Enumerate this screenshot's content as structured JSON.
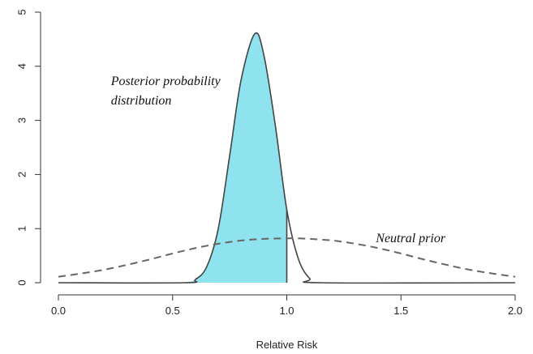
{
  "chart_data": {
    "type": "line",
    "title": "",
    "xlabel": "Relative Risk",
    "ylabel": "",
    "xlim": [
      0.0,
      2.0
    ],
    "ylim": [
      0,
      5
    ],
    "x_ticks": [
      "0.0",
      "0.5",
      "1.0",
      "1.5",
      "2.0"
    ],
    "y_ticks": [
      "0",
      "1",
      "2",
      "3",
      "4",
      "5"
    ],
    "grid": false,
    "legend": "none",
    "fill_color": "#8fe3ee",
    "line_color": "#444444",
    "series": [
      {
        "x": [
          0.0,
          0.55,
          0.6,
          0.65,
          0.7,
          0.75,
          0.8,
          0.86,
          0.9,
          0.95,
          1.0,
          1.05,
          1.1,
          1.15,
          2.0
        ],
        "y": [
          0,
          0,
          0.06,
          0.3,
          1.0,
          2.35,
          3.75,
          4.6,
          4.2,
          2.9,
          1.35,
          0.45,
          0.08,
          0,
          0
        ],
        "style": "solid",
        "fill_below_to_x": 1.0
      },
      {
        "x": [
          0.0,
          0.1,
          0.2,
          0.3,
          0.4,
          0.5,
          0.6,
          0.7,
          0.8,
          0.9,
          1.0,
          1.05,
          1.1,
          1.2,
          1.3,
          1.4,
          1.5,
          1.6,
          1.7,
          1.8,
          1.9,
          2.0
        ],
        "y": [
          0.11,
          0.17,
          0.24,
          0.33,
          0.43,
          0.54,
          0.64,
          0.72,
          0.78,
          0.81,
          0.82,
          0.82,
          0.81,
          0.78,
          0.72,
          0.64,
          0.54,
          0.43,
          0.33,
          0.24,
          0.17,
          0.11
        ],
        "style": "dashed"
      }
    ],
    "annotations": [
      {
        "text_line1": "Posterior probability",
        "text_line2": "distribution",
        "x": 0.23,
        "y": 3.65
      },
      {
        "text_line1": "Neutral prior",
        "x": 1.39,
        "y": 0.75
      }
    ]
  }
}
